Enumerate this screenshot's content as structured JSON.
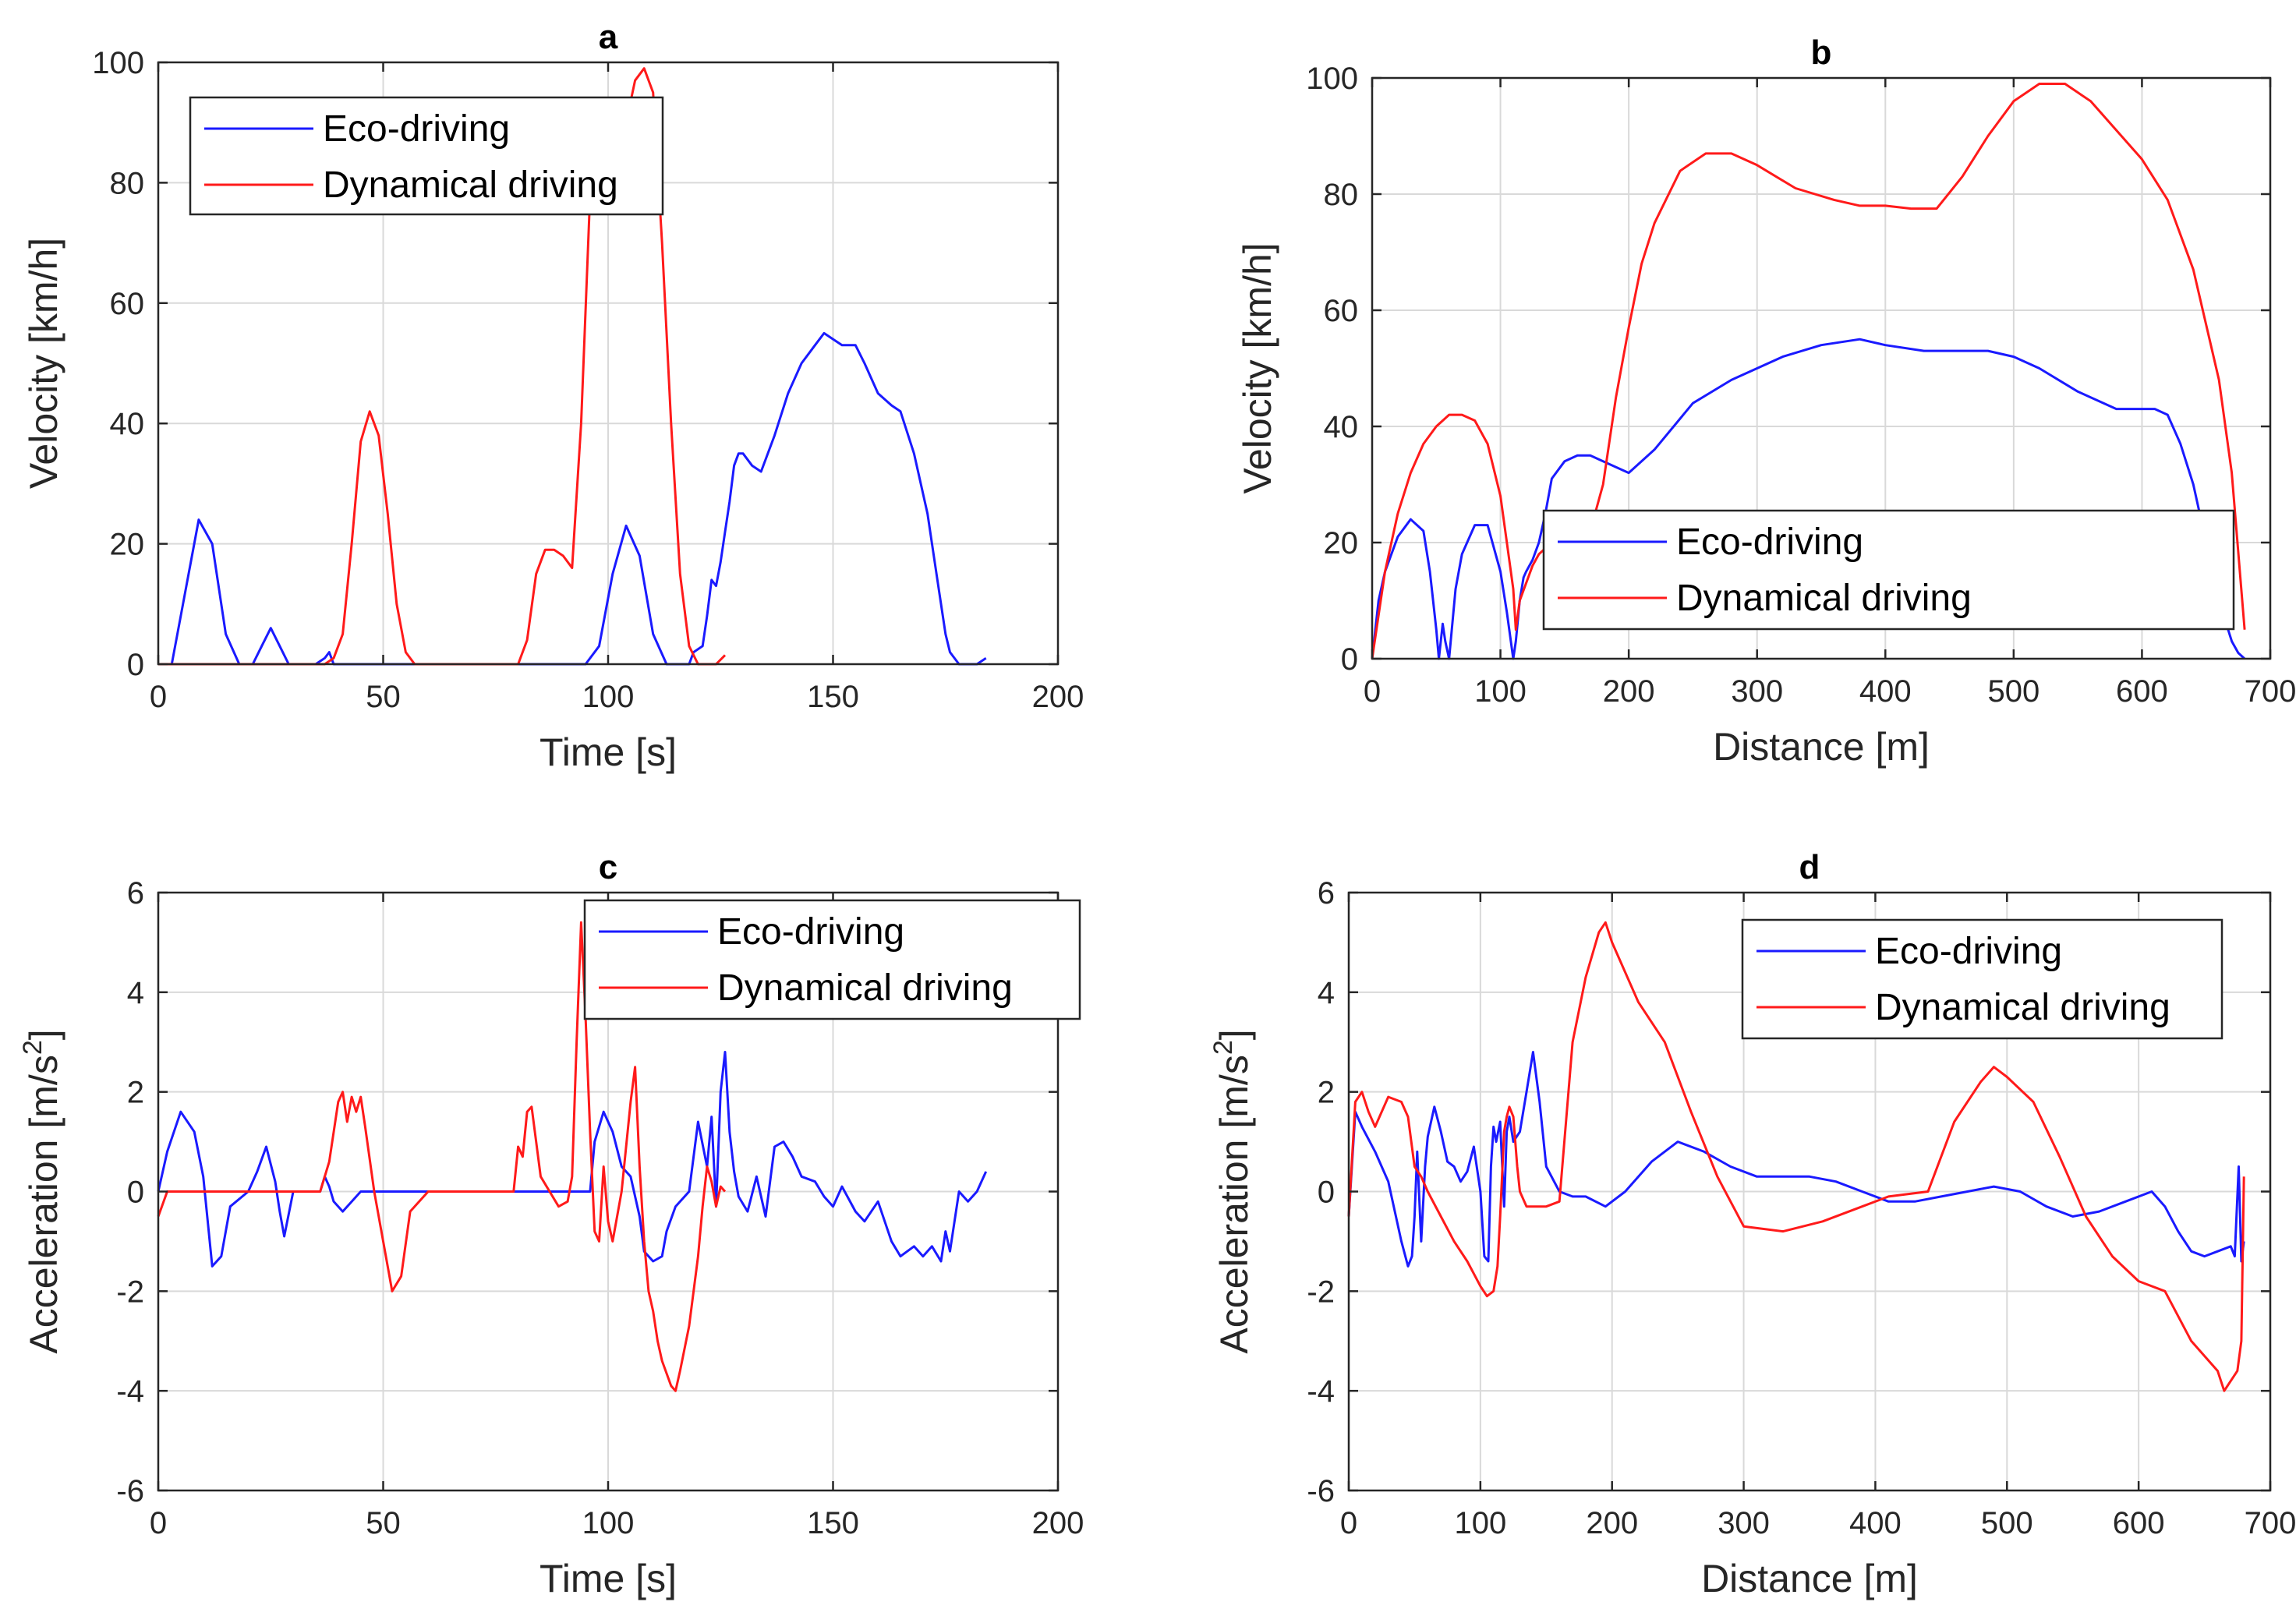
{
  "colors": {
    "eco": "#1a1aff",
    "dyn": "#ff1a1a"
  },
  "chart_data": [
    {
      "id": "a",
      "type": "line",
      "title": "a",
      "xlabel": "Time [s]",
      "ylabel": "Velocity [km/h]",
      "xlim": [
        0,
        200
      ],
      "ylim": [
        0,
        100
      ],
      "xticks": [
        0,
        50,
        100,
        150,
        200
      ],
      "yticks": [
        0,
        20,
        40,
        60,
        80,
        100
      ],
      "grid": true,
      "legend": "top-left",
      "series": [
        {
          "name": "Eco-driving",
          "color": "#1a1aff",
          "x": [
            0,
            3,
            6,
            9,
            12,
            15,
            18,
            21,
            23,
            25,
            27,
            29,
            35,
            37,
            38,
            39,
            41,
            45,
            50,
            60,
            70,
            80,
            90,
            95,
            98,
            101,
            104,
            107,
            110,
            113,
            116,
            118,
            119,
            121,
            122,
            123,
            124,
            125,
            126,
            127,
            128,
            129,
            130,
            132,
            134,
            137,
            140,
            143,
            146,
            148,
            150,
            152,
            155,
            157,
            160,
            163,
            165,
            168,
            171,
            173,
            175,
            176,
            178,
            180,
            182,
            184
          ],
          "y": [
            0,
            0,
            12,
            24,
            20,
            5,
            0,
            0,
            3,
            6,
            3,
            0,
            0,
            1,
            2,
            0,
            0,
            0,
            0,
            0,
            0,
            0,
            0,
            0,
            3,
            15,
            23,
            18,
            5,
            0,
            0,
            0,
            2,
            3,
            8,
            14,
            13,
            17,
            22,
            27,
            33,
            35,
            35,
            33,
            32,
            38,
            45,
            50,
            53,
            55,
            54,
            53,
            53,
            50,
            45,
            43,
            42,
            35,
            25,
            15,
            5,
            2,
            0,
            0,
            0,
            1
          ]
        },
        {
          "name": "Dynamical driving",
          "color": "#ff1a1a",
          "x": [
            0,
            10,
            20,
            30,
            37,
            39,
            41,
            43,
            45,
            47,
            49,
            51,
            53,
            55,
            57,
            60,
            70,
            80,
            82,
            84,
            86,
            88,
            90,
            92,
            94,
            96,
            98,
            100,
            102,
            104,
            106,
            108,
            110,
            112,
            114,
            116,
            118,
            120,
            122,
            124,
            126
          ],
          "y": [
            0,
            0,
            0,
            0,
            0,
            1,
            5,
            20,
            37,
            42,
            38,
            25,
            10,
            2,
            0,
            0,
            0,
            0,
            4,
            15,
            19,
            19,
            18,
            16,
            40,
            78,
            90,
            90,
            88,
            90,
            97,
            99,
            95,
            70,
            40,
            15,
            3,
            0,
            0,
            0,
            1.5
          ]
        }
      ]
    },
    {
      "id": "b",
      "type": "line",
      "title": "b",
      "xlabel": "Distance [m]",
      "ylabel": "Velocity [km/h]",
      "xlim": [
        0,
        700
      ],
      "ylim": [
        0,
        100
      ],
      "xticks": [
        0,
        100,
        200,
        300,
        400,
        500,
        600,
        700
      ],
      "yticks": [
        0,
        20,
        40,
        60,
        80,
        100
      ],
      "grid": true,
      "legend": "bottom-right",
      "series": [
        {
          "name": "Eco-driving",
          "color": "#1a1aff",
          "x": [
            0,
            5,
            10,
            20,
            30,
            40,
            45,
            50,
            52,
            55,
            57,
            60,
            65,
            70,
            80,
            90,
            100,
            105,
            110,
            112,
            115,
            118,
            120,
            125,
            130,
            135,
            140,
            150,
            160,
            170,
            180,
            200,
            220,
            250,
            280,
            320,
            350,
            380,
            400,
            430,
            450,
            480,
            500,
            520,
            550,
            580,
            600,
            610,
            620,
            630,
            640,
            650,
            660,
            670,
            675,
            680
          ],
          "y": [
            0,
            10,
            15,
            21,
            24,
            22,
            15,
            5,
            0,
            6,
            3,
            0,
            12,
            18,
            23,
            23,
            15,
            8,
            0,
            3,
            10,
            14,
            15,
            17,
            20,
            25,
            31,
            34,
            35,
            35,
            34,
            32,
            36,
            44,
            48,
            52,
            54,
            55,
            54,
            53,
            53,
            53,
            52,
            50,
            46,
            43,
            43,
            43,
            42,
            37,
            30,
            20,
            10,
            3,
            1,
            0
          ]
        },
        {
          "name": "Dynamical driving",
          "color": "#ff1a1a",
          "x": [
            0,
            10,
            20,
            30,
            40,
            50,
            60,
            70,
            80,
            90,
            100,
            110,
            112,
            115,
            120,
            125,
            130,
            140,
            150,
            160,
            170,
            180,
            190,
            200,
            210,
            220,
            240,
            260,
            280,
            300,
            330,
            360,
            380,
            400,
            420,
            440,
            460,
            480,
            500,
            520,
            540,
            560,
            580,
            600,
            620,
            640,
            660,
            670,
            680
          ],
          "y": [
            0,
            15,
            25,
            32,
            37,
            40,
            42,
            42,
            41,
            37,
            28,
            12,
            5,
            10,
            13,
            16,
            18,
            20,
            20,
            21,
            22,
            30,
            45,
            57,
            68,
            75,
            84,
            87,
            87,
            85,
            81,
            79,
            78,
            78,
            77.5,
            77.5,
            83,
            90,
            96,
            99,
            99,
            96,
            91,
            86,
            79,
            67,
            48,
            32,
            5
          ]
        }
      ]
    },
    {
      "id": "c",
      "type": "line",
      "title": "c",
      "xlabel": "Time [s]",
      "ylabel": "Acceleration [m/s2]",
      "xlim": [
        0,
        200
      ],
      "ylim": [
        -6,
        6
      ],
      "xticks": [
        0,
        50,
        100,
        150,
        200
      ],
      "yticks": [
        -6,
        -4,
        -2,
        0,
        2,
        4,
        6
      ],
      "grid": true,
      "legend": "top-right",
      "series": [
        {
          "name": "Eco-driving",
          "color": "#1a1aff",
          "x": [
            0,
            2,
            5,
            8,
            10,
            12,
            14,
            16,
            20,
            22,
            24,
            26,
            27,
            28,
            30,
            36,
            37,
            38,
            39,
            41,
            45,
            50,
            60,
            70,
            80,
            90,
            96,
            97,
            99,
            101,
            103,
            105,
            107,
            108,
            110,
            112,
            113,
            115,
            118,
            120,
            122,
            123,
            124,
            125,
            126,
            127,
            128,
            129,
            131,
            133,
            135,
            137,
            139,
            141,
            143,
            146,
            148,
            150,
            152,
            155,
            157,
            160,
            163,
            165,
            168,
            170,
            172,
            174,
            175,
            176,
            178,
            180,
            182,
            184
          ],
          "y": [
            0,
            0.8,
            1.6,
            1.2,
            0.3,
            -1.5,
            -1.3,
            -0.3,
            0,
            0.4,
            0.9,
            0.2,
            -0.4,
            -0.9,
            0,
            0,
            0.3,
            0.1,
            -0.2,
            -0.4,
            0,
            0,
            0,
            0,
            0,
            0,
            0,
            1,
            1.6,
            1.2,
            0.5,
            0.3,
            -0.5,
            -1.2,
            -1.4,
            -1.3,
            -0.8,
            -0.3,
            0,
            1.4,
            0.5,
            1.5,
            -0.3,
            2,
            2.8,
            1.2,
            0.4,
            -0.1,
            -0.4,
            0.3,
            -0.5,
            0.9,
            1,
            0.7,
            0.3,
            0.2,
            -0.1,
            -0.3,
            0.1,
            -0.4,
            -0.6,
            -0.2,
            -1,
            -1.3,
            -1.1,
            -1.3,
            -1.1,
            -1.4,
            -0.8,
            -1.2,
            0,
            -0.2,
            0,
            0.4
          ]
        },
        {
          "name": "Dynamical driving",
          "color": "#ff1a1a",
          "x": [
            0,
            2,
            4,
            6,
            8,
            10,
            20,
            30,
            36,
            38,
            40,
            41,
            42,
            43,
            44,
            45,
            46,
            48,
            50,
            52,
            54,
            56,
            60,
            70,
            79,
            80,
            81,
            82,
            83,
            84,
            85,
            87,
            89,
            91,
            92,
            93,
            94,
            95,
            96,
            97,
            98,
            99,
            100,
            101,
            103,
            105,
            106,
            107,
            108,
            109,
            110,
            111,
            112,
            114,
            115,
            116,
            118,
            120,
            121,
            122,
            123,
            124,
            125,
            126
          ],
          "y": [
            -0.5,
            0,
            0,
            0,
            0,
            0,
            0,
            0,
            0,
            0.6,
            1.8,
            2,
            1.4,
            1.9,
            1.6,
            1.9,
            1.3,
            0,
            -1,
            -2,
            -1.7,
            -0.4,
            0,
            0,
            0,
            0.9,
            0.7,
            1.6,
            1.7,
            1,
            0.3,
            0,
            -0.3,
            -0.2,
            0.3,
            3,
            5.4,
            3.5,
            1.2,
            -0.8,
            -1,
            0.5,
            -0.6,
            -1,
            0,
            1.8,
            2.5,
            0.5,
            -1,
            -2,
            -2.4,
            -3,
            -3.4,
            -3.9,
            -4,
            -3.6,
            -2.7,
            -1.3,
            -0.3,
            0.5,
            0.2,
            -0.3,
            0.1,
            0
          ]
        }
      ]
    },
    {
      "id": "d",
      "type": "line",
      "title": "d",
      "xlabel": "Distance [m]",
      "ylabel": "Acceleration [m/s2]",
      "xlim": [
        0,
        700
      ],
      "ylim": [
        -6,
        6
      ],
      "xticks": [
        0,
        100,
        200,
        300,
        400,
        500,
        600,
        700
      ],
      "yticks": [
        -6,
        -4,
        -2,
        0,
        2,
        4,
        6
      ],
      "grid": true,
      "legend": "top-right",
      "series": [
        {
          "name": "Eco-driving",
          "color": "#1a1aff",
          "x": [
            0,
            5,
            10,
            20,
            30,
            40,
            45,
            48,
            50,
            52,
            55,
            58,
            60,
            65,
            70,
            75,
            80,
            85,
            90,
            95,
            100,
            103,
            106,
            108,
            110,
            112,
            115,
            118,
            120,
            122,
            125,
            130,
            135,
            140,
            145,
            150,
            160,
            170,
            180,
            195,
            210,
            230,
            250,
            270,
            290,
            310,
            330,
            350,
            370,
            390,
            410,
            430,
            450,
            470,
            490,
            510,
            530,
            550,
            570,
            590,
            610,
            620,
            630,
            640,
            650,
            660,
            670,
            673,
            676,
            678,
            680
          ],
          "y": [
            -0.5,
            1.6,
            1.3,
            0.8,
            0.2,
            -1,
            -1.5,
            -1.3,
            -0.5,
            0.8,
            -1,
            0.5,
            1.1,
            1.7,
            1.2,
            0.6,
            0.5,
            0.2,
            0.4,
            0.9,
            0,
            -1.3,
            -1.4,
            0.5,
            1.3,
            1,
            1.4,
            -0.3,
            1.2,
            1.5,
            1,
            1.2,
            2,
            2.8,
            1.8,
            0.5,
            0,
            -0.1,
            -0.1,
            -0.3,
            0,
            0.6,
            1,
            0.8,
            0.5,
            0.3,
            0.3,
            0.3,
            0.2,
            0,
            -0.2,
            -0.2,
            -0.1,
            0,
            0.1,
            0,
            -0.3,
            -0.5,
            -0.4,
            -0.2,
            0,
            -0.3,
            -0.8,
            -1.2,
            -1.3,
            -1.2,
            -1.1,
            -1.3,
            0.5,
            -1.4,
            -1
          ]
        },
        {
          "name": "Dynamical driving",
          "color": "#ff1a1a",
          "x": [
            0,
            5,
            10,
            15,
            20,
            30,
            40,
            45,
            50,
            55,
            60,
            70,
            80,
            90,
            100,
            105,
            110,
            113,
            115,
            118,
            120,
            122,
            125,
            128,
            130,
            135,
            140,
            150,
            160,
            170,
            180,
            190,
            195,
            200,
            220,
            240,
            260,
            280,
            300,
            330,
            360,
            390,
            410,
            440,
            460,
            480,
            490,
            500,
            520,
            540,
            560,
            580,
            600,
            620,
            640,
            660,
            665,
            670,
            675,
            678,
            680
          ],
          "y": [
            -0.5,
            1.8,
            2,
            1.6,
            1.3,
            1.9,
            1.8,
            1.5,
            0.5,
            0.3,
            0,
            -0.5,
            -1,
            -1.4,
            -1.9,
            -2.1,
            -2,
            -1.5,
            -0.5,
            1.2,
            1.5,
            1.7,
            1.5,
            0.5,
            0,
            -0.3,
            -0.3,
            -0.3,
            -0.2,
            3,
            4.3,
            5.2,
            5.4,
            5,
            3.8,
            3,
            1.6,
            0.3,
            -0.7,
            -0.8,
            -0.6,
            -0.3,
            -0.1,
            0,
            1.4,
            2.2,
            2.5,
            2.3,
            1.8,
            0.7,
            -0.5,
            -1.3,
            -1.8,
            -2,
            -3,
            -3.6,
            -4,
            -3.8,
            -3.6,
            -3,
            0.3
          ]
        }
      ]
    }
  ]
}
